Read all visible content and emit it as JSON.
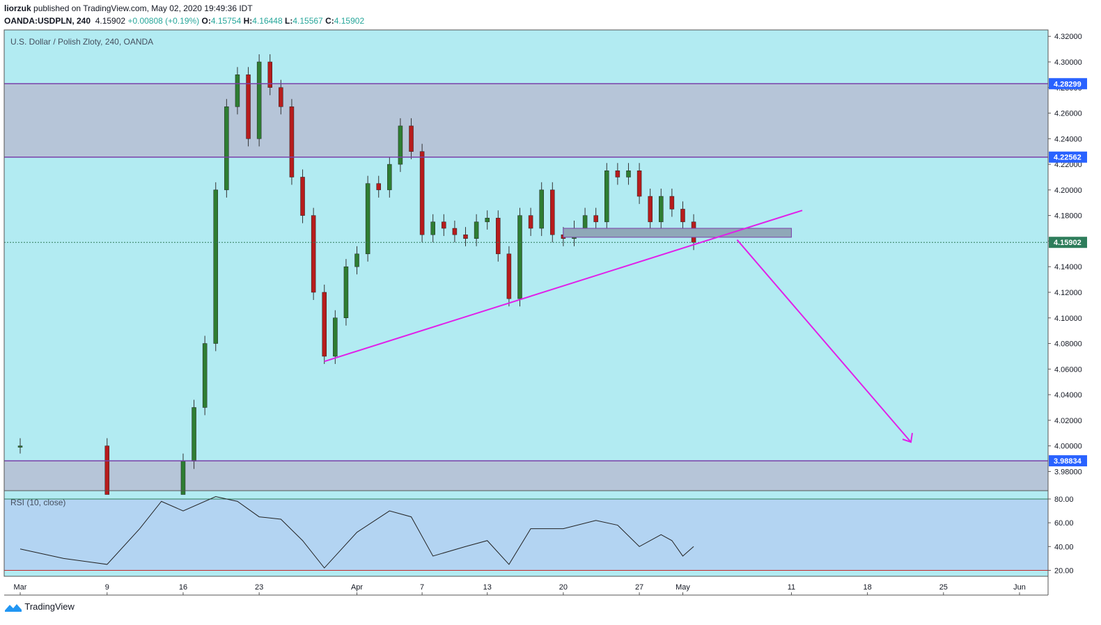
{
  "header": {
    "publisher": "liorzuk",
    "published_text": "published on TradingView.com, May 02, 2020 19:49:36 IDT",
    "symbol": "OANDA:USDPLN, 240",
    "last": "4.15902",
    "change": "+0.00808 (+0.19%)",
    "o_label": "O:",
    "o_value": "4.15754",
    "h_label": "H:",
    "h_value": "4.16448",
    "l_label": "L:",
    "l_value": "4.15567",
    "c_label": "C:",
    "c_value": "4.15902"
  },
  "footer": {
    "brand": "TradingView"
  },
  "colors": {
    "background": "#b2ebf2",
    "zone": "#b6c5d8",
    "level_line": "#7b3fa8",
    "trend": "#e020e8",
    "candle_up": "#2e7d32",
    "candle_down": "#b71c1c",
    "price_tag": "#2962ff",
    "last_tag": "#2e7d5b",
    "rsi_band": "#b3d4f2"
  },
  "chart_data": {
    "type": "candlestick",
    "title": "U.S. Dollar / Polish Zloty, 240, OANDA",
    "price_axis": {
      "ylim": [
        3.965,
        4.325
      ],
      "ticks": [
        "4.32000",
        "4.30000",
        "4.28000",
        "4.26000",
        "4.24000",
        "4.22000",
        "4.20000",
        "4.18000",
        "4.16000",
        "4.14000",
        "4.12000",
        "4.10000",
        "4.08000",
        "4.06000",
        "4.04000",
        "4.02000",
        "4.00000",
        "3.98000"
      ]
    },
    "time_axis": {
      "labels": [
        "Mar",
        "9",
        "16",
        "23",
        "Apr",
        "7",
        "13",
        "20",
        "27",
        "May",
        "11",
        "18",
        "25",
        "Jun"
      ]
    },
    "levels": [
      {
        "label": "4.28299",
        "value": 4.28299
      },
      {
        "label": "4.22562",
        "value": 4.22562
      },
      {
        "label": "3.98834",
        "value": 3.98834
      }
    ],
    "zones": [
      {
        "from": 4.22562,
        "to": 4.28299
      },
      {
        "from": 3.965,
        "to": 3.98834
      }
    ],
    "last_price": {
      "label": "4.15902",
      "value": 4.15902
    },
    "support_box": {
      "start": "Apr 20",
      "end": "May 11",
      "from": 4.163,
      "to": 4.17
    },
    "trendline": {
      "from": {
        "date": "Mar 29",
        "price": 4.066
      },
      "to": {
        "date": "May 12",
        "price": 4.184
      }
    },
    "projection_arrow": {
      "from": {
        "date": "May 6",
        "price": 4.161
      },
      "to": {
        "date": "May 22",
        "price": 4.003
      }
    },
    "candles": [
      {
        "date": "Mar 1",
        "close": 4.0
      },
      {
        "date": "Mar 9",
        "close": 3.962
      },
      {
        "date": "Mar 16",
        "close": 3.988
      },
      {
        "date": "Mar 17",
        "close": 4.03
      },
      {
        "date": "Mar 18",
        "close": 4.08
      },
      {
        "date": "Mar 19",
        "close": 4.2
      },
      {
        "date": "Mar 20",
        "close": 4.265
      },
      {
        "date": "Mar 21",
        "close": 4.29
      },
      {
        "date": "Mar 22",
        "close": 4.24
      },
      {
        "date": "Mar 23",
        "close": 4.3
      },
      {
        "date": "Mar 24",
        "close": 4.28
      },
      {
        "date": "Mar 25",
        "close": 4.265
      },
      {
        "date": "Mar 26",
        "close": 4.21
      },
      {
        "date": "Mar 27",
        "close": 4.18
      },
      {
        "date": "Mar 28",
        "close": 4.12
      },
      {
        "date": "Mar 29",
        "close": 4.07
      },
      {
        "date": "Mar 30",
        "close": 4.1
      },
      {
        "date": "Mar 31",
        "close": 4.14
      },
      {
        "date": "Apr 1",
        "close": 4.15
      },
      {
        "date": "Apr 2",
        "close": 4.205
      },
      {
        "date": "Apr 3",
        "close": 4.2
      },
      {
        "date": "Apr 4",
        "close": 4.22
      },
      {
        "date": "Apr 5",
        "close": 4.25
      },
      {
        "date": "Apr 6",
        "close": 4.23
      },
      {
        "date": "Apr 7",
        "close": 4.165
      },
      {
        "date": "Apr 8",
        "close": 4.175
      },
      {
        "date": "Apr 9",
        "close": 4.17
      },
      {
        "date": "Apr 10",
        "close": 4.165
      },
      {
        "date": "Apr 11",
        "close": 4.162
      },
      {
        "date": "Apr 12",
        "close": 4.175
      },
      {
        "date": "Apr 13",
        "close": 4.178
      },
      {
        "date": "Apr 14",
        "close": 4.15
      },
      {
        "date": "Apr 15",
        "close": 4.115
      },
      {
        "date": "Apr 16",
        "close": 4.18
      },
      {
        "date": "Apr 17",
        "close": 4.17
      },
      {
        "date": "Apr 18",
        "close": 4.2
      },
      {
        "date": "Apr 19",
        "close": 4.165
      },
      {
        "date": "Apr 20",
        "close": 4.162
      },
      {
        "date": "Apr 21",
        "close": 4.17
      },
      {
        "date": "Apr 22",
        "close": 4.18
      },
      {
        "date": "Apr 23",
        "close": 4.175
      },
      {
        "date": "Apr 24",
        "close": 4.215
      },
      {
        "date": "Apr 25",
        "close": 4.21
      },
      {
        "date": "Apr 26",
        "close": 4.215
      },
      {
        "date": "Apr 27",
        "close": 4.195
      },
      {
        "date": "Apr 28",
        "close": 4.175
      },
      {
        "date": "Apr 29",
        "close": 4.195
      },
      {
        "date": "Apr 30",
        "close": 4.185
      },
      {
        "date": "May 1",
        "close": 4.175
      },
      {
        "date": "May 2",
        "close": 4.159
      }
    ],
    "rsi": {
      "label": "RSI (10, close)",
      "ylim": [
        15,
        87
      ],
      "ticks": [
        "80.00",
        "60.00",
        "40.00",
        "20.00"
      ],
      "upper": 80,
      "lower": 20,
      "values": [
        {
          "date": "Mar 1",
          "value": 38
        },
        {
          "date": "Mar 5",
          "value": 30
        },
        {
          "date": "Mar 9",
          "value": 25
        },
        {
          "date": "Mar 12",
          "value": 55
        },
        {
          "date": "Mar 14",
          "value": 78
        },
        {
          "date": "Mar 16",
          "value": 70
        },
        {
          "date": "Mar 19",
          "value": 82
        },
        {
          "date": "Mar 21",
          "value": 78
        },
        {
          "date": "Mar 23",
          "value": 65
        },
        {
          "date": "Mar 25",
          "value": 63
        },
        {
          "date": "Mar 27",
          "value": 45
        },
        {
          "date": "Mar 29",
          "value": 22
        },
        {
          "date": "Apr 1",
          "value": 52
        },
        {
          "date": "Apr 4",
          "value": 70
        },
        {
          "date": "Apr 6",
          "value": 65
        },
        {
          "date": "Apr 8",
          "value": 32
        },
        {
          "date": "Apr 11",
          "value": 40
        },
        {
          "date": "Apr 13",
          "value": 45
        },
        {
          "date": "Apr 15",
          "value": 25
        },
        {
          "date": "Apr 17",
          "value": 55
        },
        {
          "date": "Apr 20",
          "value": 55
        },
        {
          "date": "Apr 23",
          "value": 62
        },
        {
          "date": "Apr 25",
          "value": 58
        },
        {
          "date": "Apr 27",
          "value": 40
        },
        {
          "date": "Apr 29",
          "value": 50
        },
        {
          "date": "Apr 30",
          "value": 45
        },
        {
          "date": "May 1",
          "value": 32
        },
        {
          "date": "May 2",
          "value": 40
        }
      ]
    }
  }
}
